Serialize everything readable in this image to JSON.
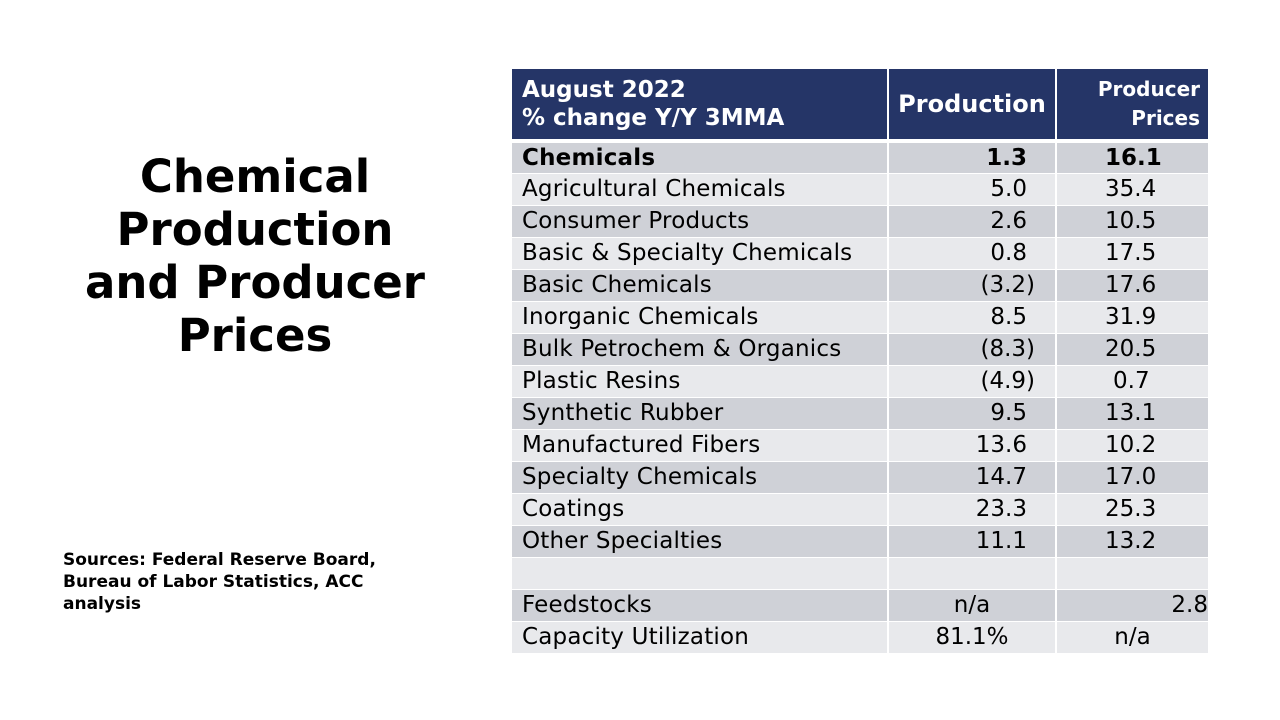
{
  "title": {
    "line1": "Chemical",
    "line2": "Production",
    "line3": "and Producer",
    "line4": "Prices"
  },
  "sources": {
    "line1": "Sources: Federal Reserve Board,",
    "line2": "Bureau of Labor Statistics, ACC",
    "line3": "analysis"
  },
  "table": {
    "header": {
      "label_line1": "August 2022",
      "label_line2": "% change Y/Y 3MMA",
      "production": "Production",
      "prices_line1": "Producer",
      "prices_line2": "Prices"
    },
    "rows": [
      {
        "name": "Chemicals",
        "production": "1.3",
        "prices": "16.1"
      },
      {
        "name": "Agricultural Chemicals",
        "production": "5.0",
        "prices": "35.4"
      },
      {
        "name": "Consumer Products",
        "production": "2.6",
        "prices": "10.5"
      },
      {
        "name": "Basic & Specialty Chemicals",
        "production": "0.8",
        "prices": "17.5"
      },
      {
        "name": "Basic Chemicals",
        "production": "(3.2)",
        "prices": "17.6"
      },
      {
        "name": "Inorganic Chemicals",
        "production": "8.5",
        "prices": "31.9"
      },
      {
        "name": "Bulk Petrochem & Organics",
        "production": "(8.3)",
        "prices": "20.5"
      },
      {
        "name": "Plastic Resins",
        "production": "(4.9)",
        "prices": "0.7"
      },
      {
        "name": "Synthetic Rubber",
        "production": "9.5",
        "prices": "13.1"
      },
      {
        "name": "Manufactured Fibers",
        "production": "13.6",
        "prices": "10.2"
      },
      {
        "name": "Specialty Chemicals",
        "production": "14.7",
        "prices": "17.0"
      },
      {
        "name": "Coatings",
        "production": "23.3",
        "prices": "25.3"
      },
      {
        "name": "Other Specialties",
        "production": "11.1",
        "prices": "13.2"
      },
      {
        "name": "",
        "production": "",
        "prices": ""
      },
      {
        "name": "Feedstocks",
        "production": "n/a",
        "prices": "2.8"
      },
      {
        "name": "Capacity Utilization",
        "production": "81.1%",
        "prices": "n/a"
      }
    ]
  },
  "colors": {
    "header_bg": "#253567",
    "row_dark": "#cfd1d7",
    "row_light": "#e8e9ec"
  }
}
